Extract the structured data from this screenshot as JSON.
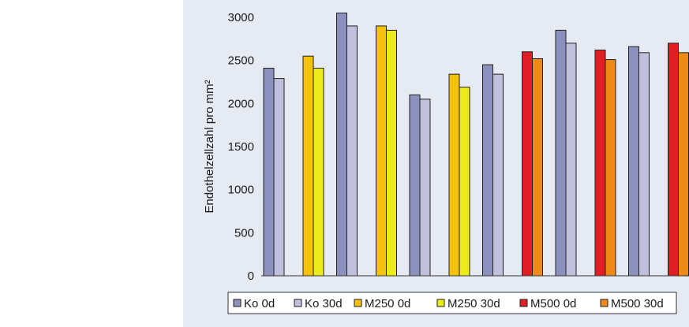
{
  "colors": {
    "panel_bg": "#e6ebf3",
    "Ko 0d": "#8b90bd",
    "Ko 30d": "#c0c0dc",
    "M250 0d": "#f4c20d",
    "M250 30d": "#ecec1c",
    "M500 0d": "#e01e25",
    "M500 30d": "#f08a17"
  },
  "chart_data": {
    "type": "bar",
    "ylabel": "Endothelzellzahl pro mm²",
    "xlabel": "",
    "ylim": [
      0,
      3000
    ],
    "yticks": [
      0,
      500,
      1000,
      1500,
      2000,
      2500,
      3000
    ],
    "ytick_labels": [
      "0",
      "500",
      "1000",
      "1500",
      "2000",
      "2500",
      "3000"
    ],
    "legend": {
      "position": "bottom",
      "entries": [
        "Ko 0d",
        "Ko 30d",
        "M250 0d",
        "M250 30d",
        "M500 0d",
        "M500 30d"
      ]
    },
    "groups": [
      {
        "bars": [
          {
            "series": "Ko 0d",
            "value": 2410
          },
          {
            "series": "Ko 30d",
            "value": 2290
          },
          {
            "series": "M250 0d",
            "value": 2550
          },
          {
            "series": "M250 30d",
            "value": 2410
          }
        ]
      },
      {
        "bars": [
          {
            "series": "Ko 0d",
            "value": 3050
          },
          {
            "series": "Ko 30d",
            "value": 2900
          },
          {
            "series": "M250 0d",
            "value": 2900
          },
          {
            "series": "M250 30d",
            "value": 2850
          }
        ]
      },
      {
        "bars": [
          {
            "series": "Ko 0d",
            "value": 2100
          },
          {
            "series": "Ko 30d",
            "value": 2050
          },
          {
            "series": "M250 0d",
            "value": 2340
          },
          {
            "series": "M250 30d",
            "value": 2190
          }
        ]
      },
      {
        "bars": [
          {
            "series": "Ko 0d",
            "value": 2450
          },
          {
            "series": "Ko 30d",
            "value": 2340
          },
          {
            "series": "M500 0d",
            "value": 2600
          },
          {
            "series": "M500 30d",
            "value": 2520
          }
        ]
      },
      {
        "bars": [
          {
            "series": "Ko 0d",
            "value": 2850
          },
          {
            "series": "Ko 30d",
            "value": 2700
          },
          {
            "series": "M500 0d",
            "value": 2620
          },
          {
            "series": "M500 30d",
            "value": 2510
          }
        ]
      },
      {
        "bars": [
          {
            "series": "Ko 0d",
            "value": 2660
          },
          {
            "series": "Ko 30d",
            "value": 2590
          },
          {
            "series": "M500 0d",
            "value": 2700
          },
          {
            "series": "M500 30d",
            "value": 2590
          }
        ]
      }
    ]
  }
}
